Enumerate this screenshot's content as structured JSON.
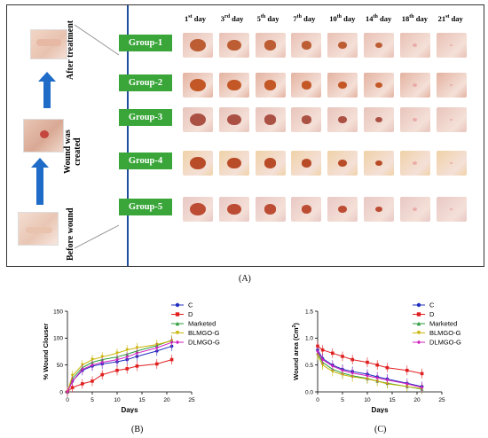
{
  "panel_a": {
    "left_labels": {
      "after_treatment": "After treatment",
      "wound_created_line1": "Wound was",
      "wound_created_line2": "created",
      "before_wound": "Before wound"
    },
    "day_headers": [
      {
        "num": "1",
        "sup": "st",
        "word": " day"
      },
      {
        "num": "3",
        "sup": "rd",
        "word": " day"
      },
      {
        "num": "5",
        "sup": "th",
        "word": " day"
      },
      {
        "num": "7",
        "sup": "th",
        "word": " day"
      },
      {
        "num": "10",
        "sup": "th",
        "word": " day"
      },
      {
        "num": "14",
        "sup": "th",
        "word": " day"
      },
      {
        "num": "18",
        "sup": "th",
        "word": " day"
      },
      {
        "num": "21",
        "sup": "st",
        "word": " day"
      }
    ],
    "groups": [
      "Group-1",
      "Group-2",
      "Group-3",
      "Group-4",
      "Group-5"
    ],
    "group_color": "#3aa63a",
    "arrow_color": "#1e6cc8",
    "caption": "(A)"
  },
  "panel_b": {
    "caption": "(B)"
  },
  "panel_c": {
    "caption": "(C)"
  },
  "chart_data": [
    {
      "type": "line",
      "ylabel": "% Wound Clouser",
      "xlabel": "Days",
      "xlim": [
        0,
        25
      ],
      "ylim": [
        0,
        150
      ],
      "xticks": [
        0,
        5,
        10,
        15,
        20,
        25
      ],
      "yticks": [
        0,
        50,
        100,
        150
      ],
      "x": [
        0,
        1,
        3,
        5,
        7,
        10,
        12,
        14,
        18,
        21
      ],
      "series": [
        {
          "name": "C",
          "color": "#1f2fbf",
          "marker": "circle",
          "values": [
            0,
            20,
            40,
            48,
            52,
            56,
            60,
            66,
            76,
            85
          ]
        },
        {
          "name": "D",
          "color": "#e02020",
          "marker": "square",
          "values": [
            0,
            8,
            15,
            20,
            32,
            40,
            43,
            48,
            52,
            60
          ]
        },
        {
          "name": "Marketed",
          "color": "#2a9a3a",
          "marker": "triangle",
          "values": [
            0,
            25,
            45,
            55,
            60,
            65,
            70,
            76,
            86,
            96
          ]
        },
        {
          "name": "BLMGO-G",
          "color": "#c8b400",
          "marker": "triangle-down",
          "values": [
            0,
            30,
            50,
            60,
            65,
            72,
            78,
            82,
            88,
            95
          ]
        },
        {
          "name": "DLMGO-G",
          "color": "#d020c0",
          "marker": "diamond",
          "values": [
            0,
            20,
            42,
            50,
            55,
            60,
            65,
            72,
            82,
            92
          ]
        }
      ]
    },
    {
      "type": "line",
      "ylabel": "Wound area (Cm",
      "ylabel_sup": "2",
      "ylabel_end": ")",
      "xlabel": "Days",
      "xlim": [
        0,
        25
      ],
      "ylim": [
        0,
        1.5
      ],
      "xticks": [
        0,
        5,
        10,
        15,
        20,
        25
      ],
      "yticks": [
        "0.0",
        "0.5",
        "1.0",
        "1.5"
      ],
      "x": [
        0,
        1,
        3,
        5,
        7,
        10,
        12,
        14,
        18,
        21
      ],
      "series": [
        {
          "name": "C",
          "color": "#1f2fbf",
          "marker": "circle",
          "values": [
            0.78,
            0.62,
            0.5,
            0.42,
            0.38,
            0.33,
            0.28,
            0.24,
            0.16,
            0.1
          ]
        },
        {
          "name": "D",
          "color": "#e02020",
          "marker": "square",
          "values": [
            0.85,
            0.78,
            0.72,
            0.66,
            0.6,
            0.55,
            0.5,
            0.45,
            0.4,
            0.34
          ]
        },
        {
          "name": "Marketed",
          "color": "#2a9a3a",
          "marker": "triangle",
          "values": [
            0.72,
            0.55,
            0.42,
            0.35,
            0.3,
            0.25,
            0.2,
            0.16,
            0.1,
            0.05
          ]
        },
        {
          "name": "BLMGO-G",
          "color": "#c8b400",
          "marker": "triangle-down",
          "values": [
            0.68,
            0.5,
            0.38,
            0.32,
            0.28,
            0.24,
            0.2,
            0.15,
            0.1,
            0.06
          ]
        },
        {
          "name": "DLMGO-G",
          "color": "#d020c0",
          "marker": "diamond",
          "values": [
            0.75,
            0.6,
            0.48,
            0.4,
            0.35,
            0.3,
            0.26,
            0.22,
            0.15,
            0.08
          ]
        }
      ]
    }
  ]
}
